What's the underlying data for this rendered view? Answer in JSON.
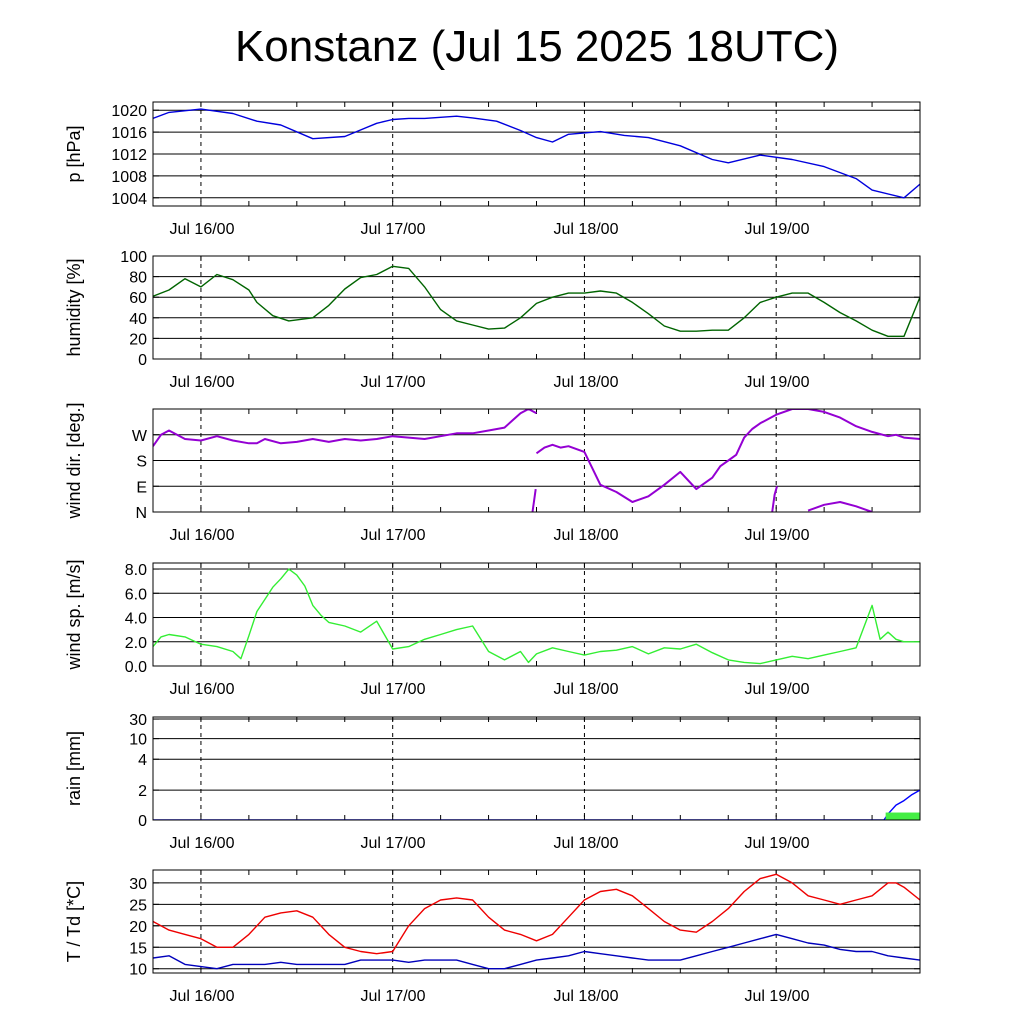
{
  "title": "Konstanz (Jul 15 2025 18UTC)",
  "colors": {
    "pressure": "#0000dd",
    "humidity": "#006400",
    "wind_dir": "#9400d3",
    "wind_speed": "#33ee33",
    "rain_line": "#0000ff",
    "rain_fill": "#44ee44",
    "temperature": "#ee0000",
    "dewpoint": "#0000bb"
  },
  "chart_data": [
    {
      "type": "line",
      "ylabel": "p [hPa]",
      "x_ticks": [
        "Jul 16/00",
        "Jul 17/00",
        "Jul 18/00",
        "Jul 19/00"
      ],
      "x_range_hours": [
        0,
        96
      ],
      "y_ticks": [
        "1004",
        "1008",
        "1012",
        "1016",
        "1020"
      ],
      "ylim": [
        1002.5,
        1021.5
      ],
      "series": [
        {
          "color_key": "pressure",
          "x": [
            0,
            2,
            6,
            10,
            13,
            16,
            20,
            24,
            28,
            30,
            32,
            34,
            36,
            38,
            40,
            43,
            46,
            48,
            50,
            52,
            56,
            59,
            62,
            66,
            70,
            72,
            76,
            80,
            84,
            88,
            90,
            94,
            96
          ],
          "y": [
            1018.5,
            1019.6,
            1020.2,
            1019.4,
            1018,
            1017.3,
            1014.8,
            1015.2,
            1017.6,
            1018.3,
            1018.5,
            1018.5,
            1018.7,
            1018.9,
            1018.6,
            1018,
            1016.3,
            1015,
            1014.2,
            1015.6,
            1016.1,
            1015.4,
            1015,
            1013.5,
            1011,
            1010.4,
            1011.8,
            1011,
            1009.7,
            1007.5,
            1005.4,
            1004,
            1006.5
          ]
        }
      ]
    },
    {
      "type": "line",
      "ylabel": "humidity [%]",
      "x_ticks": [
        "Jul 16/00",
        "Jul 17/00",
        "Jul 18/00",
        "Jul 19/00"
      ],
      "x_range_hours": [
        0,
        96
      ],
      "y_ticks": [
        "0",
        "20",
        "40",
        "60",
        "80",
        "100"
      ],
      "ylim": [
        0,
        100
      ],
      "series": [
        {
          "color_key": "humidity",
          "x": [
            0,
            2,
            4,
            6,
            8,
            10,
            12,
            13,
            15,
            17,
            20,
            22,
            24,
            26,
            28,
            30,
            32,
            34,
            36,
            38,
            40,
            42,
            44,
            46,
            48,
            50,
            52,
            54,
            56,
            58,
            60,
            62,
            64,
            66,
            68,
            70,
            72,
            74,
            76,
            78,
            80,
            82,
            84,
            86,
            88,
            90,
            92,
            94,
            96
          ],
          "y": [
            61,
            67,
            78,
            70,
            82,
            77,
            67,
            55,
            42,
            37,
            40,
            52,
            68,
            79,
            82,
            90,
            88,
            70,
            48,
            37,
            33,
            29,
            30,
            40,
            54,
            60,
            64,
            64,
            66,
            64,
            55,
            44,
            32,
            27,
            27,
            28,
            28,
            40,
            55,
            60,
            64,
            64,
            55,
            45,
            37,
            28,
            22,
            22,
            60
          ]
        }
      ]
    },
    {
      "type": "scatter",
      "ylabel": "wind dir. [deg.]",
      "x_ticks": [
        "Jul 16/00",
        "Jul 17/00",
        "Jul 18/00",
        "Jul 19/00"
      ],
      "x_range_hours": [
        0,
        96
      ],
      "y_ticks": [
        "N",
        "E",
        "S",
        "W"
      ],
      "y_tick_values": [
        0,
        90,
        180,
        270
      ],
      "ylim": [
        0,
        360
      ],
      "series": [
        {
          "color_key": "wind_dir",
          "segments": [
            {
              "x": [
                0,
                1,
                2,
                3,
                4,
                6,
                8,
                10,
                12,
                13,
                14,
                16,
                18,
                20,
                22,
                24,
                26,
                28,
                30,
                32,
                34,
                36,
                38,
                40,
                42,
                44,
                45,
                46,
                47,
                48
              ],
              "y": [
                230,
                270,
                285,
                270,
                255,
                250,
                265,
                250,
                240,
                240,
                255,
                240,
                245,
                255,
                245,
                255,
                250,
                255,
                265,
                260,
                255,
                265,
                275,
                275,
                285,
                295,
                320,
                345,
                360,
                345
              ]
            },
            {
              "x": [
                48,
                49,
                50,
                51,
                52,
                54,
                56,
                58,
                60,
                62,
                64,
                66,
                68,
                70,
                71,
                72,
                73,
                74,
                75,
                76,
                78,
                80
              ],
              "y": [
                205,
                225,
                235,
                225,
                230,
                210,
                95,
                70,
                35,
                55,
                95,
                140,
                80,
                120,
                160,
                180,
                200,
                260,
                290,
                310,
                340,
                360
              ]
            },
            {
              "x": [
                47.5,
                47.7,
                47.9
              ],
              "y": [
                0,
                40,
                80
              ]
            },
            {
              "x": [
                77.5,
                77.8,
                78.1
              ],
              "y": [
                0,
                60,
                90
              ]
            },
            {
              "x": [
                80,
                82,
                84,
                86,
                88,
                90,
                92,
                93,
                94,
                96
              ],
              "y": [
                360,
                360,
                350,
                330,
                300,
                280,
                265,
                270,
                260,
                255
              ]
            },
            {
              "x": [
                82,
                84,
                86,
                88,
                90
              ],
              "y": [
                5,
                25,
                35,
                20,
                0
              ]
            }
          ]
        }
      ]
    },
    {
      "type": "line",
      "ylabel": "wind sp. [m/s]",
      "x_ticks": [
        "Jul 16/00",
        "Jul 17/00",
        "Jul 18/00",
        "Jul 19/00"
      ],
      "x_range_hours": [
        0,
        96
      ],
      "y_ticks": [
        "0.0",
        "2.0",
        "4.0",
        "6.0",
        "8.0"
      ],
      "ylim": [
        0,
        8.5
      ],
      "series": [
        {
          "color_key": "wind_speed",
          "x": [
            0,
            1,
            2,
            4,
            6,
            8,
            10,
            11,
            12,
            13,
            14,
            15,
            16,
            17,
            18,
            19,
            20,
            21,
            22,
            24,
            26,
            28,
            30,
            32,
            34,
            36,
            38,
            40,
            42,
            44,
            46,
            47,
            48,
            50,
            52,
            54,
            56,
            58,
            60,
            62,
            64,
            66,
            68,
            70,
            72,
            74,
            76,
            78,
            80,
            82,
            84,
            86,
            88,
            90,
            91,
            92,
            93,
            94,
            96
          ],
          "y": [
            1.6,
            2.4,
            2.6,
            2.4,
            1.8,
            1.6,
            1.2,
            0.6,
            2.5,
            4.5,
            5.5,
            6.5,
            7.2,
            8.0,
            7.5,
            6.6,
            5.0,
            4.2,
            3.6,
            3.3,
            2.8,
            3.7,
            1.4,
            1.6,
            2.2,
            2.6,
            3.0,
            3.3,
            1.2,
            0.5,
            1.2,
            0.3,
            1.0,
            1.5,
            1.2,
            0.9,
            1.2,
            1.3,
            1.6,
            1.0,
            1.5,
            1.4,
            1.8,
            1.1,
            0.5,
            0.3,
            0.2,
            0.5,
            0.8,
            0.6,
            0.9,
            1.2,
            1.5,
            5.0,
            2.2,
            2.8,
            2.2,
            2.0,
            2.0
          ]
        }
      ]
    },
    {
      "type": "area",
      "ylabel": "rain [mm]",
      "x_ticks": [
        "Jul 16/00",
        "Jul 17/00",
        "Jul 18/00",
        "Jul 19/00"
      ],
      "x_range_hours": [
        0,
        96
      ],
      "y_ticks": [
        "0",
        "2",
        "4",
        "10",
        "30"
      ],
      "y_tick_values": [
        0,
        2,
        4,
        10,
        30
      ],
      "y_scale": "nonlinear",
      "series": [
        {
          "name": "",
          "color_key": "rain_line",
          "x": [
            0,
            91.5,
            92.0,
            93.0,
            94.0,
            95.0,
            96.0
          ],
          "y": [
            0,
            0,
            0.4,
            1.0,
            1.3,
            1.7,
            2.0
          ]
        },
        {
          "name": "",
          "color_key": "rain_fill",
          "x": [
            91.7,
            96.0
          ],
          "y": [
            0.5,
            0.5
          ]
        }
      ]
    },
    {
      "type": "line",
      "ylabel": "T / Td [*C]",
      "x_ticks": [
        "Jul 16/00",
        "Jul 17/00",
        "Jul 18/00",
        "Jul 19/00"
      ],
      "x_range_hours": [
        0,
        96
      ],
      "y_ticks": [
        "10",
        "15",
        "20",
        "25",
        "30"
      ],
      "ylim": [
        9,
        33
      ],
      "series": [
        {
          "color_key": "temperature",
          "x": [
            0,
            2,
            4,
            6,
            8,
            10,
            12,
            14,
            16,
            18,
            20,
            22,
            24,
            26,
            28,
            30,
            32,
            34,
            36,
            38,
            40,
            42,
            44,
            46,
            48,
            50,
            52,
            54,
            56,
            58,
            60,
            62,
            64,
            66,
            68,
            70,
            72,
            74,
            76,
            78,
            80,
            82,
            84,
            86,
            88,
            90,
            92,
            93,
            94,
            96
          ],
          "y": [
            21,
            19,
            18,
            17,
            15,
            15,
            18,
            22,
            23,
            23.5,
            22,
            18,
            15,
            14,
            13.5,
            14,
            20,
            24,
            26,
            26.5,
            26,
            22,
            19,
            18,
            16.5,
            18,
            22,
            26,
            28,
            28.5,
            27,
            24,
            21,
            19,
            18.5,
            21,
            24,
            28,
            31,
            32,
            30,
            27,
            26,
            25,
            26,
            27,
            30,
            30,
            29,
            26
          ]
        },
        {
          "color_key": "dewpoint",
          "x": [
            0,
            2,
            4,
            6,
            8,
            10,
            12,
            14,
            16,
            18,
            20,
            22,
            24,
            26,
            28,
            30,
            32,
            34,
            36,
            38,
            40,
            42,
            44,
            46,
            48,
            50,
            52,
            54,
            56,
            58,
            60,
            62,
            64,
            66,
            68,
            70,
            72,
            74,
            76,
            78,
            80,
            82,
            84,
            86,
            88,
            90,
            92,
            94,
            96
          ],
          "y": [
            12.5,
            13,
            11,
            10.5,
            10,
            11,
            11,
            11,
            11.5,
            11,
            11,
            11,
            11,
            12,
            12,
            12,
            11.5,
            12,
            12,
            12,
            11,
            10,
            10,
            11,
            12,
            12.5,
            13,
            14,
            13.5,
            13,
            12.5,
            12,
            12,
            12,
            13,
            14,
            15,
            16,
            17,
            18,
            17,
            16,
            15.5,
            14.5,
            14,
            14,
            13,
            12.5,
            12
          ]
        }
      ]
    }
  ]
}
